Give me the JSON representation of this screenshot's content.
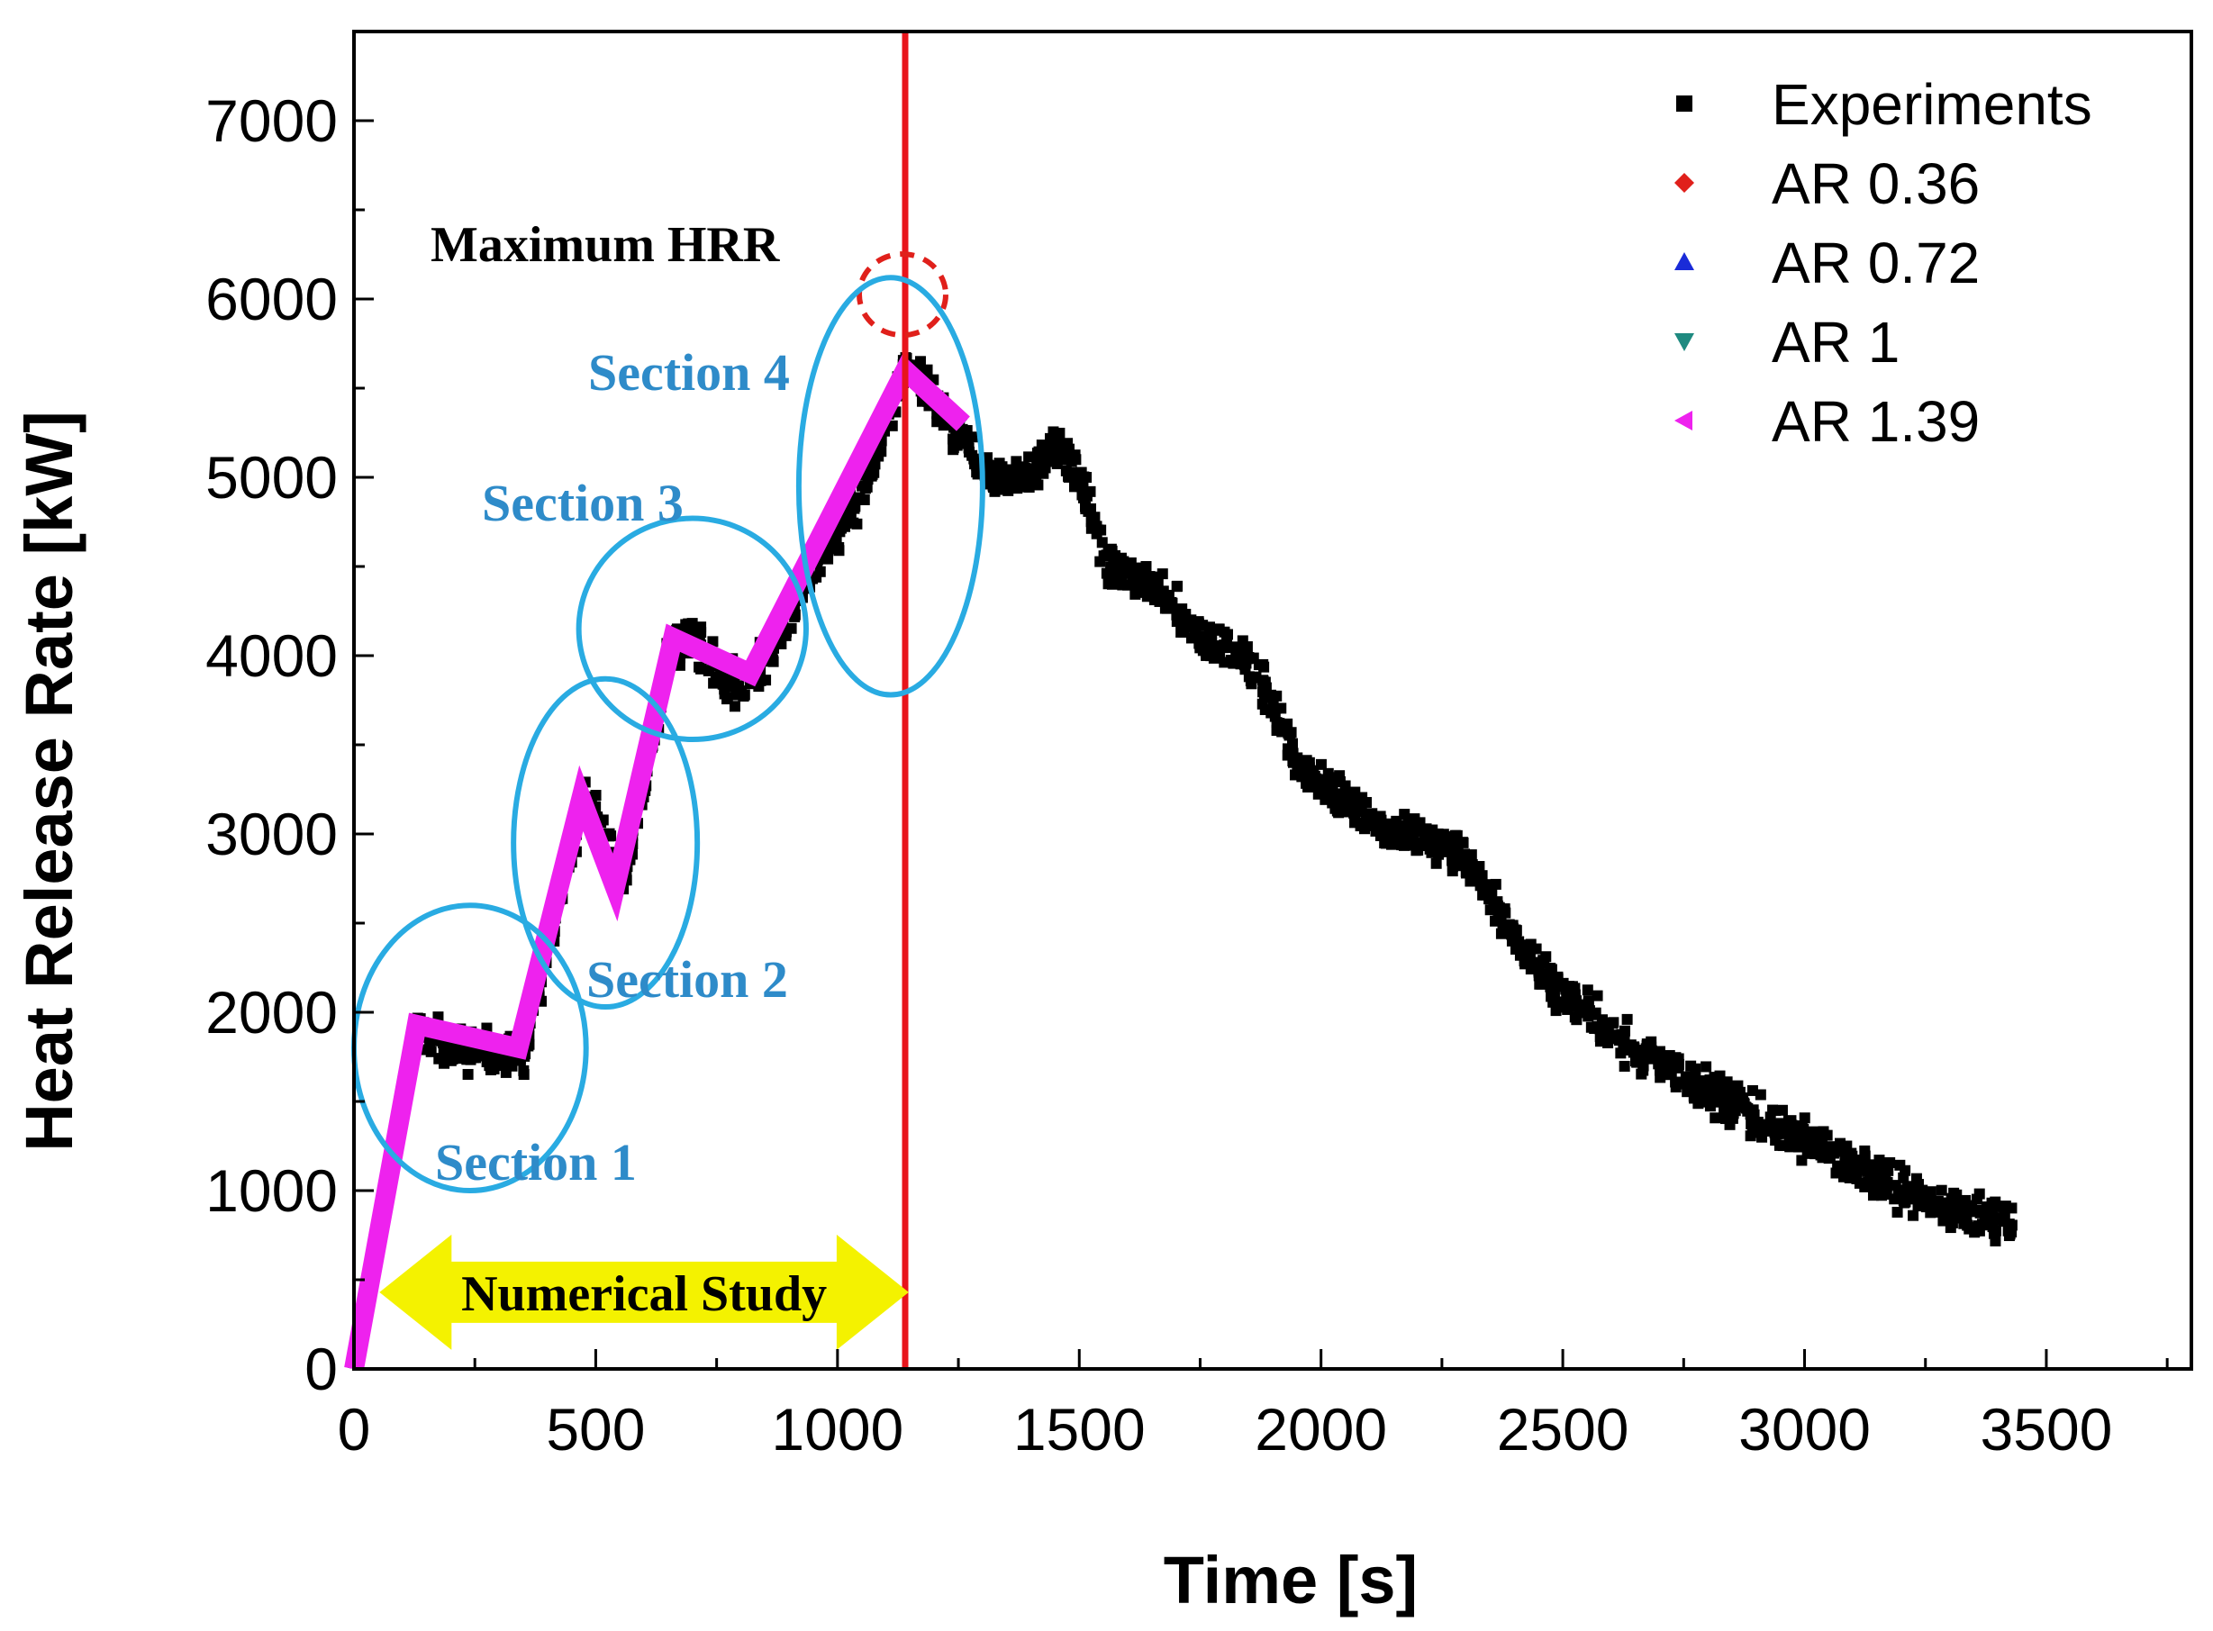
{
  "chart_data": {
    "type": "scatter",
    "xlabel": "Time [s]",
    "ylabel": "Heat Release Rate [kW]",
    "xlim": [
      0,
      3800
    ],
    "ylim": [
      0,
      7500
    ],
    "xticks": [
      0,
      500,
      1000,
      1500,
      2000,
      2500,
      3000,
      3500
    ],
    "yticks": [
      0,
      1000,
      2000,
      3000,
      4000,
      5000,
      6000,
      7000
    ],
    "legend_position": "top-right",
    "series": [
      {
        "name": "Experiments",
        "marker": "square",
        "color": "#000000",
        "trend": {
          "x": [
            0,
            130,
            200,
            350,
            420,
            480,
            560,
            650,
            700,
            800,
            870,
            950,
            1050,
            1140,
            1180,
            1250,
            1320,
            1400,
            1450,
            1500,
            1560,
            1650,
            1750,
            1850,
            1900,
            1950,
            2050,
            2150,
            2250,
            2320,
            2400,
            2500,
            2650,
            2800,
            2950,
            3100,
            3250,
            3350,
            3430
          ],
          "y": [
            0,
            1950,
            1800,
            1750,
            2600,
            3200,
            2750,
            4000,
            4100,
            3800,
            4050,
            4500,
            4900,
            5600,
            5500,
            5200,
            5000,
            5000,
            5200,
            5000,
            4500,
            4400,
            4100,
            4000,
            3700,
            3400,
            3200,
            3000,
            2950,
            2800,
            2400,
            2100,
            1800,
            1550,
            1350,
            1150,
            950,
            870,
            830
          ]
        },
        "spread": 170,
        "count": 1800
      },
      {
        "name": "AR 0.36",
        "marker": "diamond",
        "color": "#e0201b",
        "x": [
          0,
          130,
          340,
          470,
          540,
          660,
          820,
          1140,
          1260
        ],
        "y": [
          0,
          1930,
          1800,
          3200,
          2700,
          4100,
          3900,
          5600,
          5300
        ]
      },
      {
        "name": "AR 0.72",
        "marker": "triangle-up",
        "color": "#1a2bd8",
        "x": [
          0,
          130,
          340,
          470,
          540,
          660,
          820,
          1140,
          1260
        ],
        "y": [
          0,
          1930,
          1800,
          3200,
          2700,
          4100,
          3900,
          5600,
          5300
        ]
      },
      {
        "name": "AR 1",
        "marker": "triangle-down",
        "color": "#1f8a80",
        "x": [
          0,
          130,
          340,
          470,
          540,
          660,
          820,
          1140,
          1260
        ],
        "y": [
          0,
          1930,
          1800,
          3200,
          2700,
          4100,
          3900,
          5600,
          5300
        ]
      },
      {
        "name": "AR 1.39",
        "marker": "triangle-left",
        "color": "#ee22ee",
        "x": [
          0,
          130,
          340,
          470,
          540,
          660,
          820,
          1140,
          1260
        ],
        "y": [
          0,
          1930,
          1800,
          3200,
          2700,
          4100,
          3900,
          5600,
          5300
        ]
      }
    ],
    "vertical_line": {
      "x": 1140,
      "color": "#e8141b"
    },
    "annotations": {
      "maximum_hrr": {
        "label": "Maximum HRR",
        "x": 1140,
        "y": 6050
      },
      "sections": [
        {
          "label": "Section 1",
          "cx": 240,
          "cy": 1800,
          "rx": 240,
          "ry": 800
        },
        {
          "label": "Section 2",
          "cx": 520,
          "cy": 2950,
          "rx": 190,
          "ry": 920
        },
        {
          "label": "Section 3",
          "cx": 700,
          "cy": 4150,
          "rx": 235,
          "ry": 620
        },
        {
          "label": "Section 4",
          "cx": 1110,
          "cy": 4950,
          "rx": 190,
          "ry": 1170
        }
      ],
      "numerical_study": {
        "label": "Numerical Study",
        "x_start": 90,
        "x_end": 1110,
        "y": 430
      }
    }
  }
}
